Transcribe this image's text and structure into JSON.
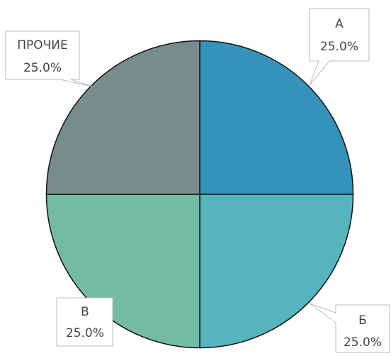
{
  "chart_data": {
    "type": "pie",
    "categories": [
      "А",
      "Б",
      "В",
      "ПРОЧИЕ"
    ],
    "values": [
      25,
      25,
      25,
      25
    ],
    "value_labels": [
      "25.0%",
      "25.0%",
      "25.0%",
      "25.0%"
    ],
    "colors": [
      "#3592bb",
      "#56b4bf",
      "#74bba4",
      "#798c8c"
    ]
  }
}
